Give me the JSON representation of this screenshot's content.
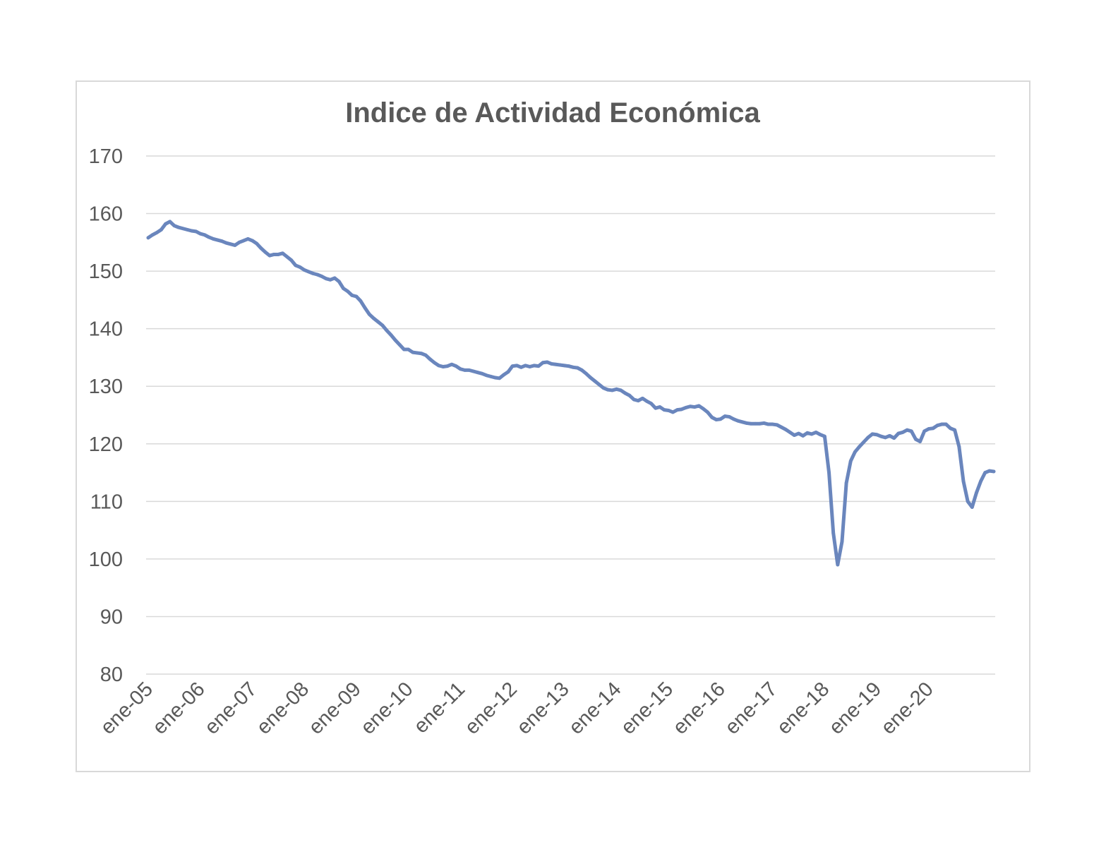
{
  "chart_data": {
    "type": "line",
    "title": "Indice de Actividad Económica",
    "xlabel": "",
    "ylabel": "",
    "ylim": [
      80,
      170
    ],
    "y_ticks": [
      "80",
      "90",
      "100",
      "110",
      "120",
      "130",
      "140",
      "150",
      "160",
      "170"
    ],
    "x_tick_labels": [
      "ene-05",
      "ene-06",
      "ene-07",
      "ene-08",
      "ene-09",
      "ene-10",
      "ene-11",
      "ene-12",
      "ene-13",
      "ene-14",
      "ene-15",
      "ene-16",
      "ene-17",
      "ene-18",
      "ene-19",
      "ene-20"
    ],
    "grid": true,
    "legend": "none",
    "line_color": "#6a86bd",
    "series": [
      {
        "values": [
          155.8,
          156.3,
          156.7,
          157.2,
          158.2,
          158.6,
          157.9,
          157.6,
          157.4,
          157.2,
          157.0,
          156.9,
          156.5,
          156.3,
          155.9,
          155.6,
          155.4,
          155.2,
          154.9,
          154.7,
          154.5,
          155.0,
          155.3,
          155.6,
          155.3,
          154.8,
          154.0,
          153.3,
          152.7,
          152.9,
          152.9,
          153.1,
          152.5,
          151.9,
          151.0,
          150.7,
          150.2,
          149.9,
          149.6,
          149.4,
          149.1,
          148.7,
          148.5,
          148.8,
          148.2,
          147.0,
          146.5,
          145.8,
          145.6,
          144.8,
          143.6,
          142.5,
          141.8,
          141.2,
          140.6,
          139.7,
          138.9,
          138.0,
          137.2,
          136.4,
          136.4,
          135.9,
          135.8,
          135.7,
          135.4,
          134.7,
          134.1,
          133.6,
          133.4,
          133.5,
          133.8,
          133.5,
          133.0,
          132.8,
          132.8,
          132.6,
          132.4,
          132.2,
          131.9,
          131.7,
          131.5,
          131.4,
          132.0,
          132.5,
          133.5,
          133.6,
          133.3,
          133.6,
          133.4,
          133.6,
          133.5,
          134.1,
          134.2,
          133.9,
          133.8,
          133.7,
          133.6,
          133.5,
          133.3,
          133.2,
          132.8,
          132.2,
          131.5,
          130.9,
          130.3,
          129.7,
          129.4,
          129.3,
          129.5,
          129.3,
          128.8,
          128.4,
          127.7,
          127.5,
          127.9,
          127.4,
          127.0,
          126.2,
          126.4,
          125.9,
          125.8,
          125.5,
          125.9,
          126.0,
          126.3,
          126.5,
          126.4,
          126.6,
          126.1,
          125.5,
          124.6,
          124.2,
          124.3,
          124.8,
          124.7,
          124.3,
          124.0,
          123.8,
          123.6,
          123.5,
          123.5,
          123.5,
          123.6,
          123.4,
          123.4,
          123.3,
          122.9,
          122.5,
          122.0,
          121.5,
          121.8,
          121.4,
          121.9,
          121.7,
          122.0,
          121.6,
          121.3,
          115.0,
          104.5,
          99.0,
          103.0,
          113.2,
          117.0,
          118.6,
          119.5,
          120.3,
          121.1,
          121.7,
          121.6,
          121.3,
          121.1,
          121.4,
          121.0,
          121.8,
          122.0,
          122.4,
          122.2,
          120.8,
          120.4,
          122.2,
          122.6,
          122.7,
          123.2,
          123.4,
          123.4,
          122.7,
          122.4,
          119.5,
          113.5,
          110.0,
          109.0,
          111.5,
          113.5,
          115.0,
          115.3,
          115.2
        ]
      }
    ]
  }
}
